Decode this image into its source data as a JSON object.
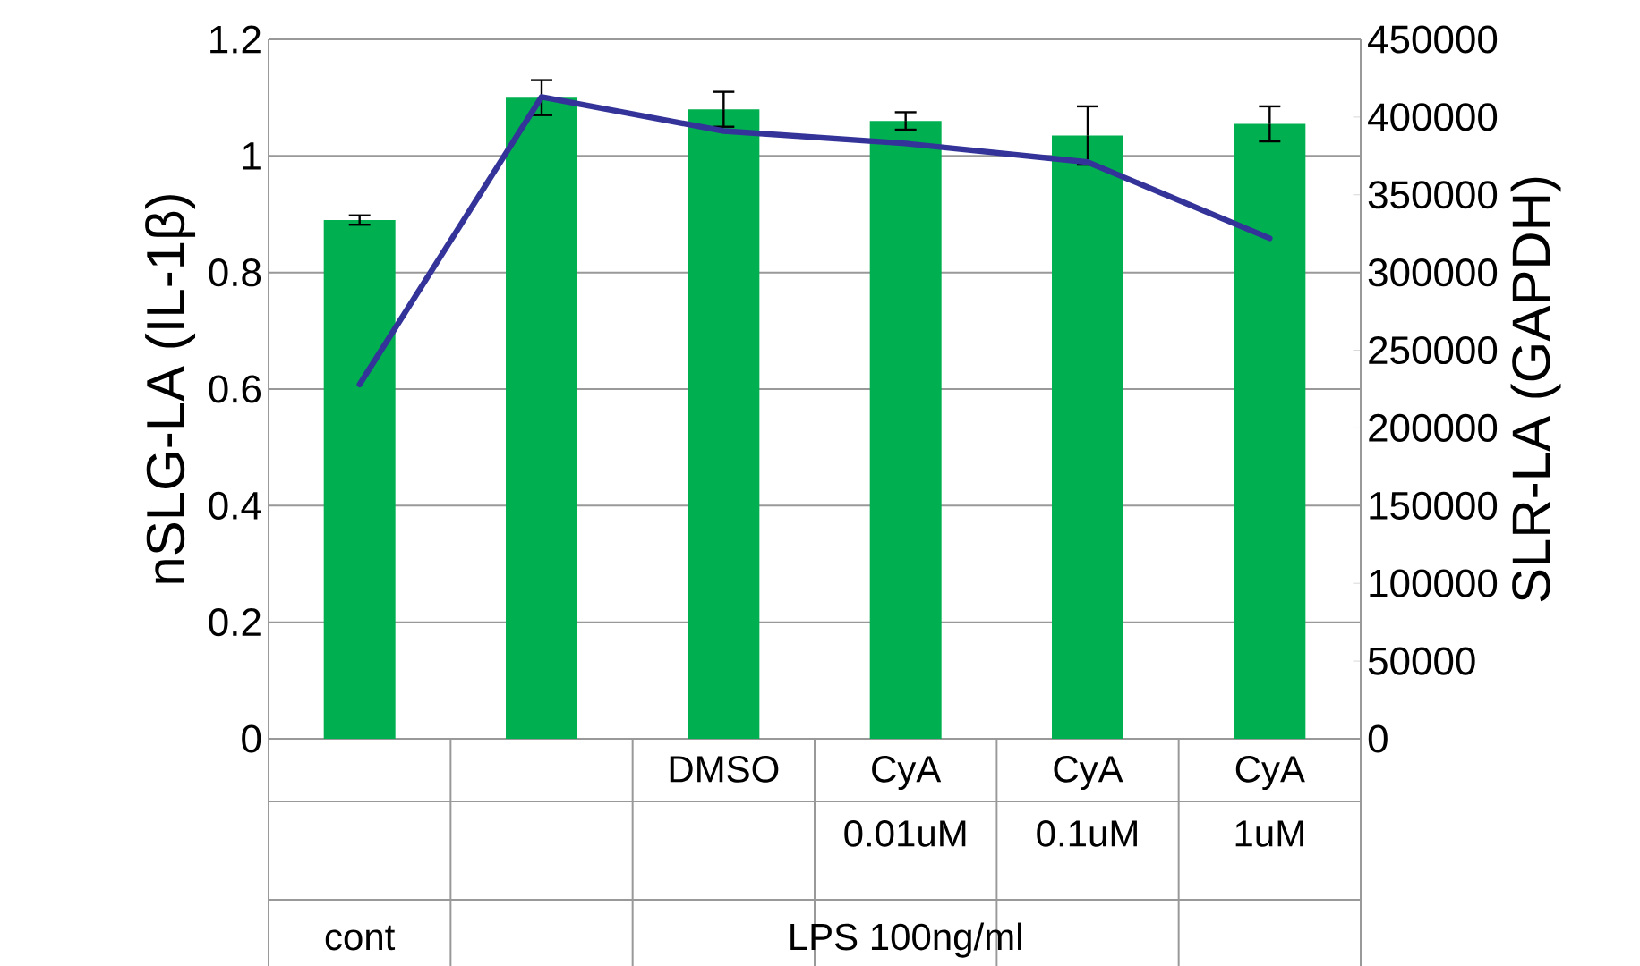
{
  "chart_data": {
    "type": "bar",
    "categories": [
      null,
      null,
      "DMSO",
      "CyA 0.01uM",
      "CyA 0.1uM",
      "CyA 1uM"
    ],
    "series": [
      {
        "color": "#00b050",
        "values": [
          0.89,
          1.1,
          1.08,
          1.06,
          1.035,
          1.055
        ],
        "errors": [
          0.008,
          0.03,
          0.03,
          0.015,
          0.05,
          0.03
        ]
      },
      {
        "type": "line",
        "axis": "y2",
        "color": "#333399",
        "values": [
          228000,
          413000,
          391000,
          383000,
          371000,
          322000
        ]
      }
    ],
    "ylabel": "nSLG-LA (IL-1β)",
    "y2label": "SLR-LA (GAPDH)",
    "ylim": [
      0,
      1.2
    ],
    "yticks": [
      0,
      0.2,
      0.4,
      0.6,
      0.8,
      1,
      1.2
    ],
    "y2lim": [
      0,
      450000
    ],
    "y2ticks": [
      0,
      50000,
      100000,
      150000,
      200000,
      250000,
      300000,
      350000,
      400000,
      450000
    ],
    "grid": "y",
    "annotations": [
      "cont",
      "LPS 100ng/ml"
    ]
  }
}
